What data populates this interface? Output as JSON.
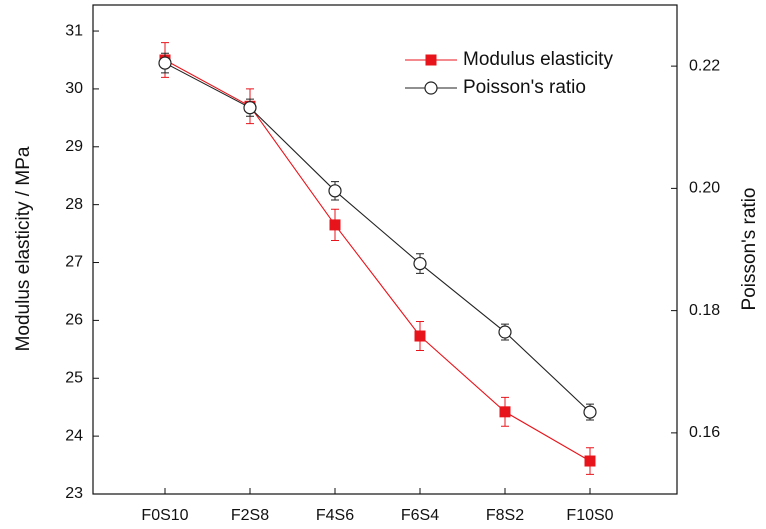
{
  "chart_data": {
    "type": "line",
    "categories": [
      "F0S10",
      "F2S8",
      "F4S6",
      "F6S4",
      "F8S2",
      "F10S0"
    ],
    "ylabel": "Modulus elasticity / MPa",
    "y2label": "Poisson's ratio",
    "ylim": [
      23,
      31.45
    ],
    "yticks": [
      23,
      24,
      25,
      26,
      27,
      28,
      29,
      30,
      31
    ],
    "y2lim": [
      0.15,
      0.23
    ],
    "y2ticks": [
      0.16,
      0.18,
      {
        "value": 0.2,
        "label": "0.20"
      },
      0.22
    ],
    "legend": "upper right",
    "series": [
      {
        "name": "Modulus elasticity",
        "color": "#e8141b",
        "marker": "square",
        "values": [
          30.5,
          29.7,
          27.65,
          25.73,
          24.42,
          23.57
        ],
        "errors": [
          0.3,
          0.3,
          0.27,
          0.25,
          0.25,
          0.23
        ]
      },
      {
        "name": "Poisson's ratio",
        "color": "#222222",
        "marker": "circle",
        "axis": "y2",
        "values": [
          0.2205,
          0.2132,
          0.1996,
          0.1877,
          0.1765,
          0.1634
        ],
        "errors": [
          0.0016,
          0.0014,
          0.0015,
          0.0016,
          0.0013,
          0.0013
        ]
      }
    ]
  }
}
